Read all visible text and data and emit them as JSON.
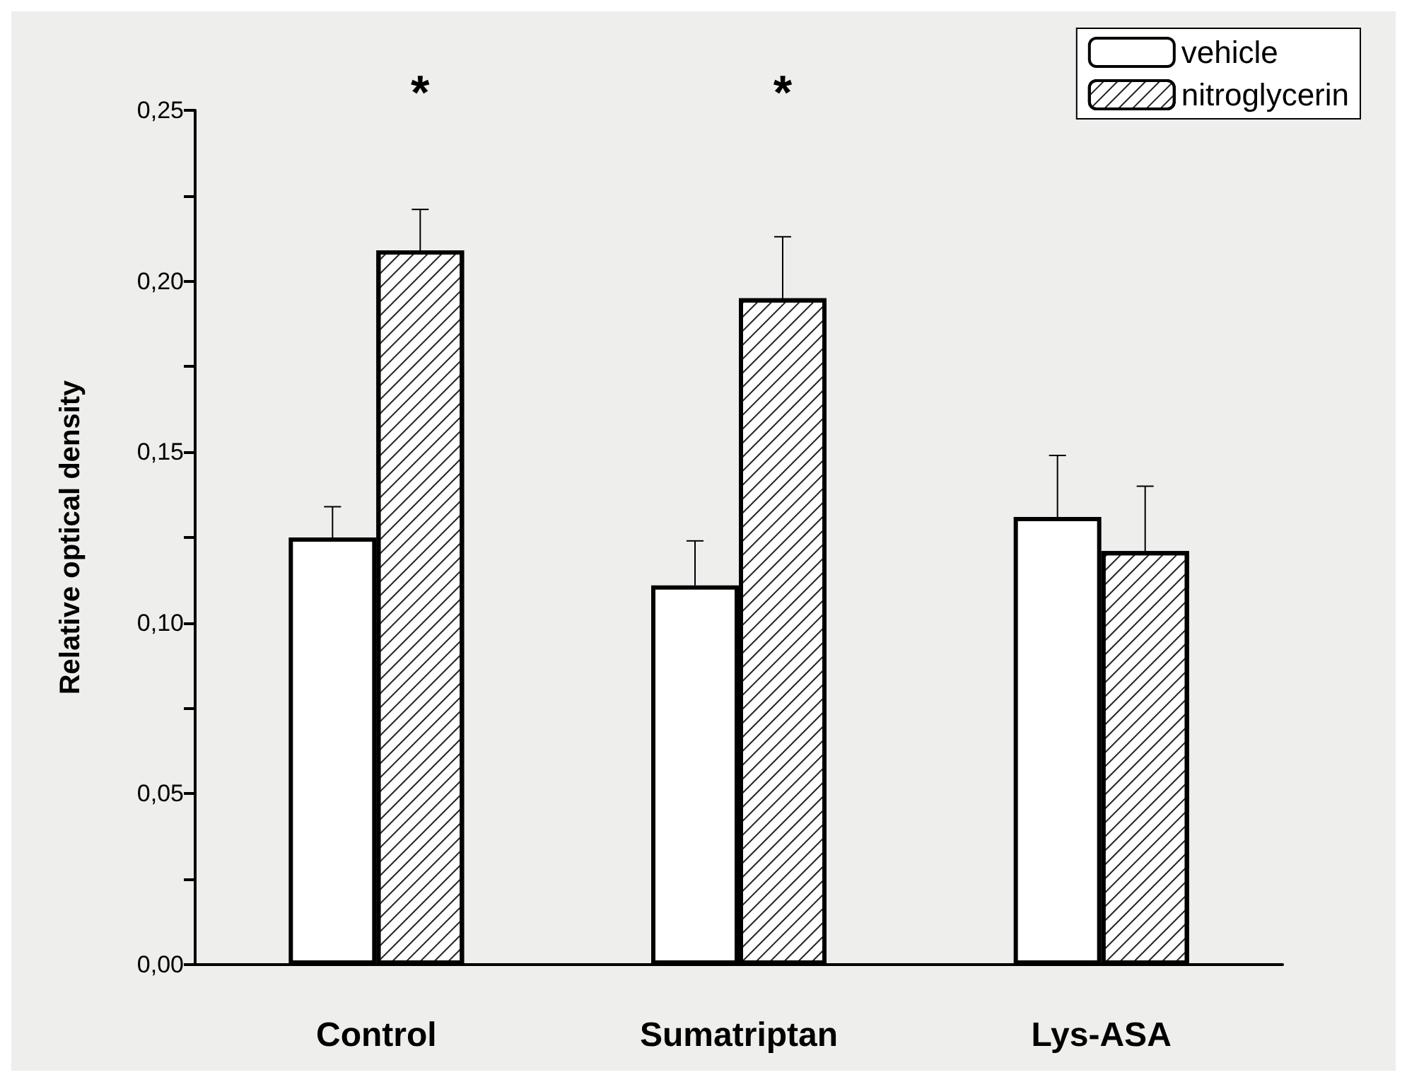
{
  "chart_data": {
    "type": "bar",
    "ylabel": "Relative optical density",
    "categories": [
      "Control",
      "Sumatriptan",
      "Lys-ASA"
    ],
    "series": [
      {
        "name": "vehicle",
        "color": "#ffffff",
        "values": [
          0.125,
          0.111,
          0.131
        ],
        "errors": [
          [
            0.125,
            0.134
          ],
          [
            0.111,
            0.124
          ],
          [
            0.131,
            0.149
          ]
        ]
      },
      {
        "name": "nitroglycerin",
        "color": "#ffffff",
        "values": [
          0.209,
          0.195,
          0.121
        ],
        "errors": [
          [
            0.209,
            0.221
          ],
          [
            0.195,
            0.213
          ],
          [
            0.121,
            0.14
          ]
        ]
      }
    ],
    "ylim": [
      0,
      0.25
    ],
    "yticks": [
      {
        "value": 0,
        "label": "0,00"
      },
      {
        "value": 0.025,
        "label": null
      },
      {
        "value": 0.05,
        "label": "0,05"
      },
      {
        "value": 0.075,
        "label": null
      },
      {
        "value": 0.1,
        "label": "0,10"
      },
      {
        "value": 0.125,
        "label": null
      },
      {
        "value": 0.15,
        "label": "0,15"
      },
      {
        "value": 0.175,
        "label": null
      },
      {
        "value": 0.2,
        "label": "0,20"
      },
      {
        "value": 0.225,
        "label": null
      },
      {
        "value": 0.25,
        "label": "0,25"
      }
    ],
    "annotations": [
      "*",
      "*"
    ],
    "legend": "top right",
    "grid": false
  }
}
